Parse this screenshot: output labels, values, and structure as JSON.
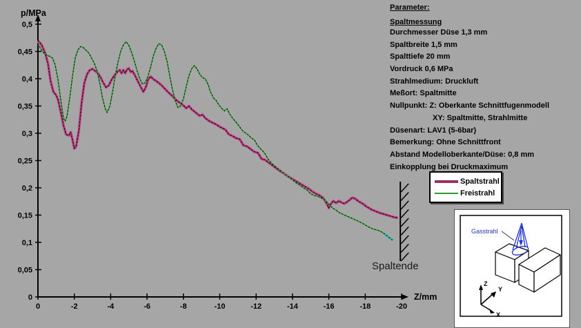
{
  "background_color": "#a6a6a6",
  "chart_data": {
    "type": "line",
    "title": "",
    "xlabel": "Z/mm",
    "ylabel": "p/MPa",
    "xlim": [
      0,
      -20
    ],
    "ylim": [
      0,
      0.5
    ],
    "grid": false,
    "legend_position": "right-middle",
    "x_ticks": [
      0,
      -2,
      -4,
      -6,
      -8,
      -10,
      -12,
      -14,
      -16,
      -18,
      -20
    ],
    "x_tick_labels": [
      "0",
      "-2",
      "-4",
      "-6",
      "-8",
      "-10",
      "-12",
      "-14",
      "-16",
      "-18",
      "-20"
    ],
    "y_ticks": [
      0,
      0.05,
      0.1,
      0.15,
      0.2,
      0.25,
      0.3,
      0.35,
      0.4,
      0.45,
      0.5
    ],
    "y_tick_labels": [
      "0",
      "0,05",
      "0,1",
      "0,15",
      "0,2",
      "0,25",
      "0,3",
      "0,35",
      "0,4",
      "0,45",
      "0,5"
    ],
    "annotations": {
      "spaltende_label": "Spaltende",
      "wall_x_mm": -19.93
    },
    "series": [
      {
        "name": "Spaltstrahl",
        "color": "#993366",
        "halo_color": "#c47ba6",
        "width": 2.6,
        "points": [
          [
            0,
            0.47
          ],
          [
            -0.2,
            0.462
          ],
          [
            -0.4,
            0.447
          ],
          [
            -0.55,
            0.428
          ],
          [
            -0.7,
            0.395
          ],
          [
            -0.85,
            0.376
          ],
          [
            -1.0,
            0.37
          ],
          [
            -1.1,
            0.362
          ],
          [
            -1.25,
            0.34
          ],
          [
            -1.4,
            0.315
          ],
          [
            -1.55,
            0.298
          ],
          [
            -1.7,
            0.296
          ],
          [
            -1.8,
            0.302
          ],
          [
            -1.9,
            0.288
          ],
          [
            -2.0,
            0.272
          ],
          [
            -2.1,
            0.276
          ],
          [
            -2.25,
            0.305
          ],
          [
            -2.4,
            0.355
          ],
          [
            -2.55,
            0.392
          ],
          [
            -2.7,
            0.408
          ],
          [
            -2.85,
            0.416
          ],
          [
            -3.0,
            0.418
          ],
          [
            -3.15,
            0.414
          ],
          [
            -3.3,
            0.41
          ],
          [
            -3.45,
            0.402
          ],
          [
            -3.6,
            0.392
          ],
          [
            -3.75,
            0.384
          ],
          [
            -3.9,
            0.388
          ],
          [
            -4.05,
            0.398
          ],
          [
            -4.2,
            0.406
          ],
          [
            -4.35,
            0.412
          ],
          [
            -4.5,
            0.416
          ],
          [
            -4.6,
            0.41
          ],
          [
            -4.7,
            0.416
          ],
          [
            -4.8,
            0.41
          ],
          [
            -4.9,
            0.417
          ],
          [
            -5.0,
            0.419
          ],
          [
            -5.1,
            0.412
          ],
          [
            -5.2,
            0.414
          ],
          [
            -5.35,
            0.405
          ],
          [
            -5.5,
            0.395
          ],
          [
            -5.65,
            0.385
          ],
          [
            -5.8,
            0.376
          ],
          [
            -5.95,
            0.386
          ],
          [
            -6.05,
            0.398
          ],
          [
            -6.2,
            0.404
          ],
          [
            -6.35,
            0.399
          ],
          [
            -6.5,
            0.396
          ],
          [
            -6.65,
            0.392
          ],
          [
            -6.8,
            0.388
          ],
          [
            -7.0,
            0.381
          ],
          [
            -7.2,
            0.374
          ],
          [
            -7.4,
            0.368
          ],
          [
            -7.6,
            0.361
          ],
          [
            -7.8,
            0.356
          ],
          [
            -8.0,
            0.351
          ],
          [
            -8.15,
            0.346
          ],
          [
            -8.3,
            0.35
          ],
          [
            -8.45,
            0.344
          ],
          [
            -8.6,
            0.34
          ],
          [
            -8.75,
            0.336
          ],
          [
            -8.9,
            0.332
          ],
          [
            -9.05,
            0.334
          ],
          [
            -9.2,
            0.328
          ],
          [
            -9.35,
            0.324
          ],
          [
            -9.5,
            0.321
          ],
          [
            -9.7,
            0.318
          ],
          [
            -9.9,
            0.314
          ],
          [
            -10.1,
            0.31
          ],
          [
            -10.3,
            0.307
          ],
          [
            -10.5,
            0.298
          ],
          [
            -10.7,
            0.295
          ],
          [
            -10.9,
            0.291
          ],
          [
            -11.1,
            0.289
          ],
          [
            -11.3,
            0.278
          ],
          [
            -11.5,
            0.276
          ],
          [
            -11.7,
            0.271
          ],
          [
            -11.9,
            0.266
          ],
          [
            -12.1,
            0.264
          ],
          [
            -12.3,
            0.253
          ],
          [
            -12.5,
            0.251
          ],
          [
            -12.7,
            0.246
          ],
          [
            -12.9,
            0.241
          ],
          [
            -13.1,
            0.236
          ],
          [
            -13.3,
            0.231
          ],
          [
            -13.5,
            0.227
          ],
          [
            -13.7,
            0.222
          ],
          [
            -13.9,
            0.218
          ],
          [
            -14.1,
            0.214
          ],
          [
            -14.3,
            0.21
          ],
          [
            -14.5,
            0.206
          ],
          [
            -14.7,
            0.202
          ],
          [
            -14.9,
            0.198
          ],
          [
            -15.1,
            0.193
          ],
          [
            -15.3,
            0.189
          ],
          [
            -15.5,
            0.186
          ],
          [
            -15.7,
            0.181
          ],
          [
            -15.9,
            0.17
          ],
          [
            -16.0,
            0.163
          ],
          [
            -16.1,
            0.17
          ],
          [
            -16.25,
            0.176
          ],
          [
            -16.4,
            0.172
          ],
          [
            -16.55,
            0.176
          ],
          [
            -16.7,
            0.173
          ],
          [
            -16.85,
            0.171
          ],
          [
            -17.0,
            0.174
          ],
          [
            -17.15,
            0.178
          ],
          [
            -17.3,
            0.182
          ],
          [
            -17.45,
            0.18
          ],
          [
            -17.6,
            0.176
          ],
          [
            -17.75,
            0.173
          ],
          [
            -17.9,
            0.17
          ],
          [
            -18.05,
            0.166
          ],
          [
            -18.2,
            0.163
          ],
          [
            -18.35,
            0.16
          ],
          [
            -18.5,
            0.158
          ],
          [
            -18.65,
            0.156
          ],
          [
            -18.8,
            0.154
          ],
          [
            -19.0,
            0.152
          ],
          [
            -19.2,
            0.15
          ],
          [
            -19.4,
            0.148
          ],
          [
            -19.6,
            0.146
          ],
          [
            -19.8,
            0.145
          ]
        ]
      },
      {
        "name": "Freistrahl",
        "color": "#2e9b32",
        "width": 1.6,
        "tail_color": "#00b4b4",
        "tail_points": 4,
        "points": [
          [
            0,
            0.464
          ],
          [
            -0.2,
            0.452
          ],
          [
            -0.35,
            0.446
          ],
          [
            -0.5,
            0.443
          ],
          [
            -0.65,
            0.441
          ],
          [
            -0.8,
            0.438
          ],
          [
            -0.95,
            0.425
          ],
          [
            -1.1,
            0.398
          ],
          [
            -1.25,
            0.362
          ],
          [
            -1.4,
            0.328
          ],
          [
            -1.5,
            0.322
          ],
          [
            -1.6,
            0.332
          ],
          [
            -1.75,
            0.365
          ],
          [
            -1.9,
            0.405
          ],
          [
            -2.05,
            0.438
          ],
          [
            -2.2,
            0.453
          ],
          [
            -2.35,
            0.459
          ],
          [
            -2.5,
            0.457
          ],
          [
            -2.65,
            0.452
          ],
          [
            -2.8,
            0.447
          ],
          [
            -2.95,
            0.438
          ],
          [
            -3.1,
            0.428
          ],
          [
            -3.25,
            0.415
          ],
          [
            -3.4,
            0.392
          ],
          [
            -3.55,
            0.365
          ],
          [
            -3.7,
            0.345
          ],
          [
            -3.8,
            0.338
          ],
          [
            -3.95,
            0.349
          ],
          [
            -4.1,
            0.375
          ],
          [
            -4.25,
            0.405
          ],
          [
            -4.4,
            0.43
          ],
          [
            -4.55,
            0.45
          ],
          [
            -4.7,
            0.462
          ],
          [
            -4.85,
            0.468
          ],
          [
            -5.0,
            0.461
          ],
          [
            -5.15,
            0.448
          ],
          [
            -5.3,
            0.432
          ],
          [
            -5.45,
            0.415
          ],
          [
            -5.6,
            0.4
          ],
          [
            -5.75,
            0.39
          ],
          [
            -5.9,
            0.393
          ],
          [
            -6.05,
            0.404
          ],
          [
            -6.2,
            0.422
          ],
          [
            -6.35,
            0.442
          ],
          [
            -6.5,
            0.456
          ],
          [
            -6.65,
            0.464
          ],
          [
            -6.8,
            0.462
          ],
          [
            -6.95,
            0.45
          ],
          [
            -7.1,
            0.432
          ],
          [
            -7.25,
            0.405
          ],
          [
            -7.4,
            0.38
          ],
          [
            -7.55,
            0.36
          ],
          [
            -7.7,
            0.347
          ],
          [
            -7.85,
            0.35
          ],
          [
            -8.0,
            0.363
          ],
          [
            -8.15,
            0.385
          ],
          [
            -8.3,
            0.405
          ],
          [
            -8.45,
            0.418
          ],
          [
            -8.6,
            0.424
          ],
          [
            -8.75,
            0.418
          ],
          [
            -8.9,
            0.408
          ],
          [
            -9.05,
            0.402
          ],
          [
            -9.2,
            0.4
          ],
          [
            -9.35,
            0.39
          ],
          [
            -9.5,
            0.375
          ],
          [
            -9.65,
            0.365
          ],
          [
            -9.8,
            0.36
          ],
          [
            -9.95,
            0.352
          ],
          [
            -10.1,
            0.346
          ],
          [
            -10.25,
            0.341
          ],
          [
            -10.4,
            0.345
          ],
          [
            -10.55,
            0.335
          ],
          [
            -10.7,
            0.328
          ],
          [
            -10.85,
            0.322
          ],
          [
            -11.0,
            0.316
          ],
          [
            -11.15,
            0.309
          ],
          [
            -11.3,
            0.303
          ],
          [
            -11.45,
            0.3
          ],
          [
            -11.6,
            0.296
          ],
          [
            -11.75,
            0.291
          ],
          [
            -11.9,
            0.288
          ],
          [
            -12.05,
            0.279
          ],
          [
            -12.2,
            0.273
          ],
          [
            -12.35,
            0.268
          ],
          [
            -12.5,
            0.262
          ],
          [
            -12.65,
            0.253
          ],
          [
            -12.8,
            0.247
          ],
          [
            -12.95,
            0.242
          ],
          [
            -13.1,
            0.238
          ],
          [
            -13.25,
            0.234
          ],
          [
            -13.4,
            0.23
          ],
          [
            -13.55,
            0.226
          ],
          [
            -13.7,
            0.222
          ],
          [
            -13.85,
            0.218
          ],
          [
            -14.0,
            0.215
          ],
          [
            -14.2,
            0.209
          ],
          [
            -14.4,
            0.205
          ],
          [
            -14.6,
            0.2
          ],
          [
            -14.8,
            0.196
          ],
          [
            -15.0,
            0.189
          ],
          [
            -15.2,
            0.186
          ],
          [
            -15.4,
            0.184
          ],
          [
            -15.6,
            0.181
          ],
          [
            -15.8,
            0.177
          ],
          [
            -16.0,
            0.17
          ],
          [
            -16.2,
            0.163
          ],
          [
            -16.4,
            0.159
          ],
          [
            -16.6,
            0.154
          ],
          [
            -16.8,
            0.151
          ],
          [
            -17.0,
            0.148
          ],
          [
            -17.2,
            0.145
          ],
          [
            -17.4,
            0.142
          ],
          [
            -17.6,
            0.139
          ],
          [
            -17.8,
            0.136
          ],
          [
            -18.0,
            0.132
          ],
          [
            -18.2,
            0.128
          ],
          [
            -18.4,
            0.125
          ],
          [
            -18.6,
            0.123
          ],
          [
            -18.8,
            0.121
          ],
          [
            -19.0,
            0.117
          ],
          [
            -19.2,
            0.112
          ],
          [
            -19.35,
            0.108
          ],
          [
            -19.5,
            0.104
          ]
        ]
      }
    ]
  },
  "params": {
    "title": "Parameter:",
    "subtitle": "Spaltmessung",
    "lines": [
      {
        "text": "Durchmesser Düse 1,3 mm",
        "indent": false
      },
      {
        "text": "Spaltbreite 1,5 mm",
        "indent": false
      },
      {
        "text": "Spalttiefe 20 mm",
        "indent": false
      },
      {
        "text": "Vordruck 0,6 MPa",
        "indent": false
      },
      {
        "text": "Strahlmedium: Druckluft",
        "indent": false
      },
      {
        "text": "Meßort: Spaltmitte",
        "indent": false
      },
      {
        "text": "Nullpunkt: Z: Oberkante Schnittfugenmodell",
        "indent": false
      },
      {
        "text": "XY: Spaltmitte, Strahlmitte",
        "indent": true
      },
      {
        "text": "Düsenart: LAV1 (5-6bar)",
        "indent": false
      },
      {
        "text": "Bemerkung: Ohne Schnittfront",
        "indent": false
      },
      {
        "text": "Abstand Modelloberkante/Düse: 0,8 mm",
        "indent": false
      },
      {
        "text": "Einkopplung bei Druckmaximum",
        "indent": false
      }
    ]
  },
  "legend": {
    "items": [
      {
        "label": "Spaltstrahl",
        "color": "#993366",
        "thick": true
      },
      {
        "label": "Freistrahl",
        "color": "#2e9b32",
        "thick": false
      }
    ]
  },
  "inset": {
    "jet_label": "Gasstrahl",
    "jet_color": "#2233cc",
    "axis_z": "Z",
    "axis_y": "Y",
    "axis_x": "X"
  }
}
